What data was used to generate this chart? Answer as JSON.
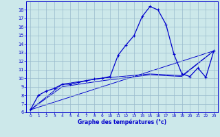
{
  "xlabel": "Graphe des températures (°c)",
  "bg_color": "#cce8ea",
  "line_color": "#0000cc",
  "grid_color": "#99bbcc",
  "xlim": [
    -0.5,
    23.5
  ],
  "ylim": [
    6,
    19
  ],
  "yticks": [
    6,
    7,
    8,
    9,
    10,
    11,
    12,
    13,
    14,
    15,
    16,
    17,
    18
  ],
  "xticks": [
    0,
    1,
    2,
    3,
    4,
    5,
    6,
    7,
    8,
    9,
    10,
    11,
    12,
    13,
    14,
    15,
    16,
    17,
    18,
    19,
    20,
    21,
    22,
    23
  ],
  "main_x": [
    0,
    1,
    2,
    3,
    4,
    5,
    6,
    7,
    8,
    9,
    10,
    11,
    12,
    13,
    14,
    15,
    16,
    17,
    18,
    19,
    20,
    21,
    22,
    23
  ],
  "main_y": [
    6.3,
    8.0,
    8.5,
    8.8,
    9.3,
    9.3,
    9.5,
    9.7,
    9.9,
    10.0,
    10.2,
    12.7,
    13.9,
    15.0,
    17.2,
    18.4,
    18.0,
    16.3,
    12.8,
    10.5,
    10.2,
    11.2,
    10.1,
    13.2
  ],
  "line2_x": [
    0,
    23
  ],
  "line2_y": [
    6.3,
    13.2
  ],
  "line3_x": [
    0,
    4,
    9,
    15,
    19,
    23
  ],
  "line3_y": [
    6.3,
    9.3,
    10.0,
    10.5,
    10.3,
    13.2
  ],
  "line4_x": [
    0,
    4,
    9,
    15,
    19,
    23
  ],
  "line4_y": [
    6.3,
    9.0,
    9.7,
    10.4,
    10.2,
    13.2
  ]
}
